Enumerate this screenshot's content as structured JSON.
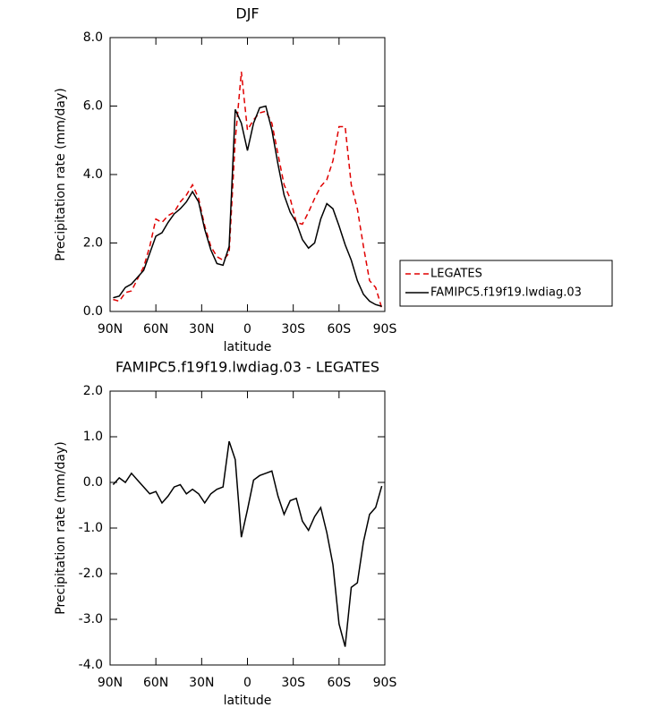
{
  "chart_data": [
    {
      "type": "line",
      "title": "DJF",
      "x_label": "latitude",
      "y_label": "Precipitation rate (mm/day)",
      "x": [
        88,
        84,
        80,
        76,
        72,
        68,
        64,
        60,
        56,
        52,
        48,
        44,
        40,
        36,
        32,
        28,
        24,
        20,
        16,
        12,
        8,
        4,
        0,
        -4,
        -8,
        -12,
        -16,
        -20,
        -24,
        -28,
        -32,
        -36,
        -40,
        -44,
        -48,
        -52,
        -56,
        -60,
        -64,
        -68,
        -72,
        -76,
        -80,
        -84,
        -88
      ],
      "series": [
        {
          "name": "LEGATES",
          "color": "#e00000",
          "linestyle": "dashed",
          "values": [
            0.35,
            0.3,
            0.55,
            0.6,
            0.95,
            1.3,
            1.9,
            2.7,
            2.6,
            2.8,
            2.9,
            3.2,
            3.4,
            3.7,
            3.3,
            2.5,
            1.9,
            1.6,
            1.5,
            1.7,
            5.0,
            7.0,
            5.3,
            5.6,
            5.8,
            5.85,
            5.5,
            4.6,
            3.7,
            3.3,
            2.6,
            2.55,
            2.9,
            3.3,
            3.65,
            3.85,
            4.4,
            5.4,
            5.4,
            3.7,
            3.0,
            1.9,
            0.9,
            0.7,
            0.1
          ]
        },
        {
          "name": "FAMIPC5.f19f19.lwdiag.03",
          "color": "#000000",
          "linestyle": "solid",
          "values": [
            0.4,
            0.45,
            0.7,
            0.8,
            1.0,
            1.2,
            1.7,
            2.2,
            2.3,
            2.6,
            2.85,
            3.0,
            3.2,
            3.5,
            3.2,
            2.4,
            1.8,
            1.4,
            1.35,
            1.9,
            5.9,
            5.5,
            4.7,
            5.5,
            5.95,
            6.0,
            5.3,
            4.3,
            3.4,
            2.9,
            2.6,
            2.1,
            1.85,
            2.0,
            2.7,
            3.15,
            3.0,
            2.5,
            1.95,
            1.5,
            0.9,
            0.5,
            0.3,
            0.2,
            0.15
          ]
        }
      ],
      "xlim": [
        90,
        -90
      ],
      "xticks": [
        {
          "value": 90,
          "label": "90N"
        },
        {
          "value": 60,
          "label": "60N"
        },
        {
          "value": 30,
          "label": "30N"
        },
        0,
        {
          "value": -30,
          "label": "30S"
        },
        {
          "value": -60,
          "label": "60S"
        },
        {
          "value": -90,
          "label": "90S"
        }
      ],
      "ylim": [
        0,
        8
      ],
      "yticks": [
        {
          "value": 0,
          "label": "0.0"
        },
        {
          "value": 2,
          "label": "2.0"
        },
        {
          "value": 4,
          "label": "4.0"
        },
        {
          "value": 6,
          "label": "6.0"
        },
        {
          "value": 8,
          "label": "8.0"
        }
      ],
      "legend": "outside right"
    },
    {
      "type": "line",
      "title": "FAMIPC5.f19f19.lwdiag.03 - LEGATES",
      "x_label": "latitude",
      "y_label": "Precipitation rate (mm/day)",
      "x": [
        88,
        84,
        80,
        76,
        72,
        68,
        64,
        60,
        56,
        52,
        48,
        44,
        40,
        36,
        32,
        28,
        24,
        20,
        16,
        12,
        8,
        4,
        0,
        -4,
        -8,
        -12,
        -16,
        -20,
        -24,
        -28,
        -32,
        -36,
        -40,
        -44,
        -48,
        -52,
        -56,
        -60,
        -64,
        -68,
        -72,
        -76,
        -80,
        -84,
        -88
      ],
      "series": [
        {
          "color": "#000000",
          "linestyle": "solid",
          "values": [
            -0.05,
            0.1,
            0.0,
            0.2,
            0.05,
            -0.1,
            -0.25,
            -0.2,
            -0.45,
            -0.3,
            -0.1,
            -0.05,
            -0.25,
            -0.15,
            -0.25,
            -0.45,
            -0.25,
            -0.15,
            -0.1,
            0.9,
            0.5,
            -1.2,
            -0.6,
            0.05,
            0.15,
            0.2,
            0.25,
            -0.3,
            -0.7,
            -0.4,
            -0.35,
            -0.85,
            -1.05,
            -0.75,
            -0.55,
            -1.1,
            -1.8,
            -3.1,
            -3.6,
            -2.3,
            -2.2,
            -1.3,
            -0.7,
            -0.55,
            -0.08
          ]
        }
      ],
      "xlim": [
        90,
        -90
      ],
      "xticks": [
        {
          "value": 90,
          "label": "90N"
        },
        {
          "value": 60,
          "label": "60N"
        },
        {
          "value": 30,
          "label": "30N"
        },
        0,
        {
          "value": -30,
          "label": "30S"
        },
        {
          "value": -60,
          "label": "60S"
        },
        {
          "value": -90,
          "label": "90S"
        }
      ],
      "ylim": [
        -4,
        2
      ],
      "yticks": [
        {
          "value": -4,
          "label": "-4.0"
        },
        {
          "value": -3,
          "label": "-3.0"
        },
        {
          "value": -2,
          "label": "-2.0"
        },
        {
          "value": -1,
          "label": "-1.0"
        },
        {
          "value": 0,
          "label": "0.0"
        },
        {
          "value": 1,
          "label": "1.0"
        },
        {
          "value": 2,
          "label": "2.0"
        }
      ]
    }
  ]
}
